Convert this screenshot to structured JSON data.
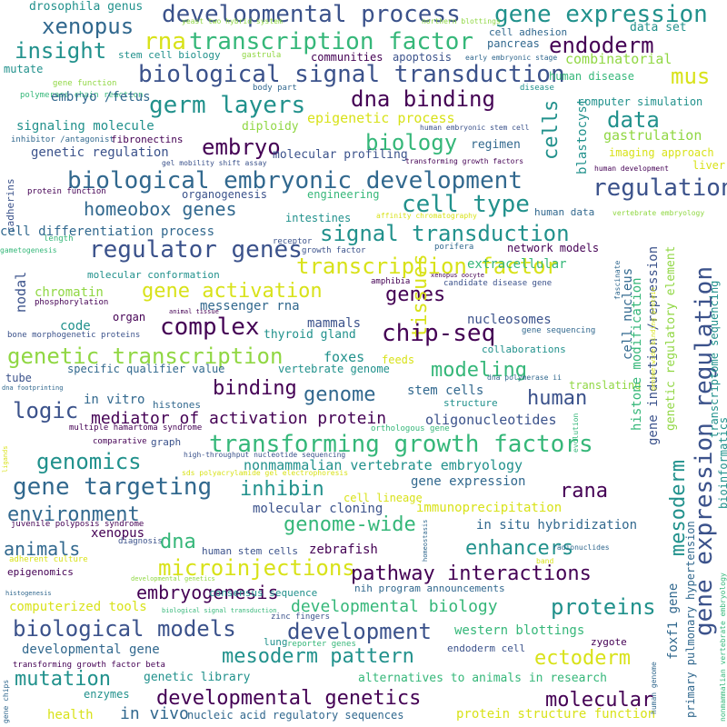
{
  "palette": {
    "dark_purple": "#440154",
    "indigo": "#3b528b",
    "blue": "#31688e",
    "teal": "#21918c",
    "green": "#35b779",
    "lime": "#90d743",
    "yellow": "#d8e219"
  },
  "words": [
    "developmental process",
    "gene expression",
    "drosophila genus",
    "yeast two hybrid system",
    "northern blottings",
    "xenopus",
    "rna",
    "transcription factor",
    "endoderm",
    "insight",
    "cell adhesion",
    "data set",
    "stem cell biology",
    "gastrula",
    "communities",
    "apoptosis",
    "early embryonic stage",
    "pancreas",
    "biological signal transduction",
    "combinatorial",
    "mus",
    "mutate",
    "human disease",
    "gene function",
    "body part",
    "disease",
    "polymerase chain reaction",
    "germ layers",
    "dna binding",
    "embryo /fetus",
    "computer simulation",
    "data",
    "epigenetic process",
    "diploidy",
    "signaling molecule",
    "human embryonic stem cell",
    "gastrulation",
    "inhibitor /antagonist",
    "fibronectins",
    "biology",
    "regimen",
    "embryo",
    "genetic regulation",
    "molecular profiling",
    "imaging approach",
    "gel mobility shift assay",
    "transforming growth factors",
    "human development",
    "cells",
    "blastocyst",
    "liver",
    "biological embryonic development",
    "regulation",
    "protein function",
    "organogenesis",
    "cadherins",
    "engineering",
    "homeobox genes",
    "cell type",
    "intestines",
    "affinity chromatography",
    "human data",
    "vertebrate embryology",
    "length",
    "cell differentiation process",
    "signal transduction",
    "receptor",
    "growth factor",
    "regulator genes",
    "porifera",
    "network models",
    "gametogenesis",
    "transcription factor",
    "xenopus oocyte",
    "extracellular",
    "molecular conformation",
    "amphibia",
    "candidate disease gene",
    "nodal",
    "chromatin",
    "gene activation",
    "genes",
    "tissues",
    "fascinate",
    "phosphorylation",
    "messenger rna",
    "cell nucleus",
    "complex",
    "animal tissue",
    "organ",
    "code",
    "mammals",
    "nucleosomes",
    "bone morphogenetic proteins",
    "thyroid gland",
    "chip-seq",
    "gene sequencing",
    "genetic transcription",
    "collaborations",
    "tube",
    "foxes",
    "feeds",
    "specific qualifier value",
    "vertebrate genome",
    "modeling",
    "dna footprinting",
    "binding",
    "genome",
    "stem cells",
    "dna polymerase ii",
    "human",
    "translating",
    "in vitro",
    "histones",
    "structure",
    "mediator of activation protein",
    "logic",
    "multiple hamartoma syndrome",
    "orthologous gene",
    "oligonucleotides",
    "comparative",
    "graph",
    "high-throughput nucleotide sequencing",
    "transforming growth factors",
    "genomics",
    "nonmammalian vertebrate embryology",
    "sds polyacrylamide gel electrophoresis",
    "gene targeting",
    "inhibin",
    "gene expression",
    "rana",
    "cell lineage",
    "environment",
    "molecular cloning",
    "immunoprecipitation",
    "xenopus",
    "juvenile polyposis syndrome",
    "genome-wide",
    "in situ hybridization",
    "animals",
    "diagnosis",
    "dna",
    "enhancers",
    "human stem cells",
    "zebrafish",
    "homeostasis",
    "radionuclides",
    "adherent culture",
    "epigenomics",
    "microinjections",
    "pathway interactions",
    "band",
    "developmental genetics",
    "nih program announcements",
    "histogenesis",
    "embryogenesis",
    "consensus sequence",
    "computerized tools",
    "developmental biology",
    "proteins",
    "biological signal transduction",
    "biological models",
    "development",
    "zinc fingers",
    "reporter genes",
    "western blottings",
    "developmental gene",
    "lung",
    "endoderm cell",
    "zygote",
    "transforming growth factor beta",
    "mesoderm pattern",
    "ectoderm",
    "mutation",
    "genetic library",
    "alternatives to animals in research",
    "enzymes",
    "developmental genetics",
    "molecular",
    "health",
    "in vivo",
    "nucleic acid regulatory sequences",
    "protein structure function",
    "gene chips",
    "ligands",
    "evolution",
    "mesoderm",
    "gene expression regulation",
    "foxf1 gene",
    "histone modification",
    "gene induction /repression",
    "genetic regulatory element",
    "transcriptome sequencing",
    "bioinformatics",
    "primary pulmonary hypertension",
    "human genome",
    "nonmammalian vertebrate embryology",
    "genome-wide binding protein"
  ]
}
